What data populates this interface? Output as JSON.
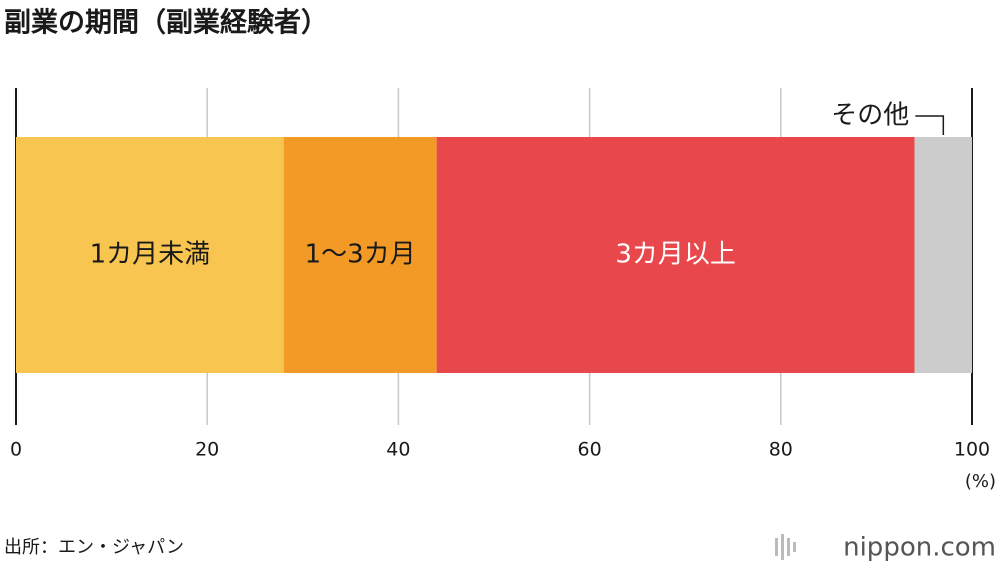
{
  "chart_data": {
    "type": "stacked-bar",
    "orientation": "horizontal",
    "title": "副業の期間（副業経験者）",
    "categories": [
      null
    ],
    "series": [
      {
        "name": "1カ月未満",
        "color": "#f8c550",
        "label_color": "#1a1a1a",
        "values": [
          28
        ]
      },
      {
        "name": "1〜3カ月",
        "color": "#f39a26",
        "label_color": "#1a1a1a",
        "values": [
          16
        ]
      },
      {
        "name": "3カ月以上",
        "color": "#e8474c",
        "label_color": "#ffffff",
        "values": [
          50
        ]
      },
      {
        "name": "その他",
        "color": "#cccccc",
        "label_color": "#1a1a1a",
        "values": [
          6
        ]
      }
    ],
    "xlim": [
      0,
      100
    ],
    "xticks": [
      0,
      20,
      40,
      60,
      80,
      100
    ],
    "x_unit": "(%)",
    "grid": true,
    "source": "出所：エン・ジャパン",
    "logo": "nippon.com"
  }
}
